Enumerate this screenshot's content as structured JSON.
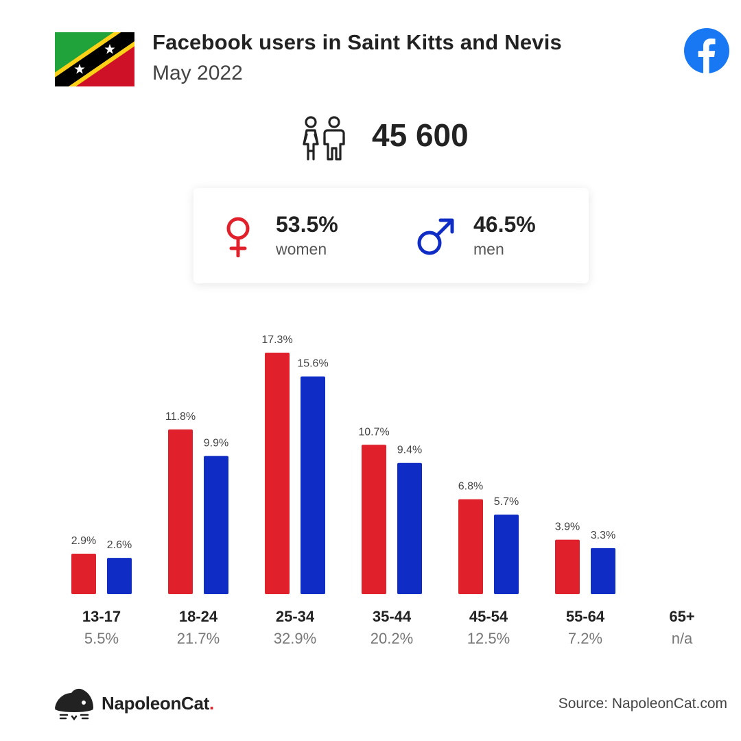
{
  "header": {
    "title": "Facebook users in Saint Kitts and Nevis",
    "subtitle": "May 2022",
    "flag_icon": "saint-kitts-and-nevis-flag",
    "logo_icon": "facebook-logo"
  },
  "summary": {
    "total": "45 600",
    "icon": "people-icon"
  },
  "gender": {
    "women_pct": "53.5%",
    "women_label": "women",
    "men_pct": "46.5%",
    "men_label": "men",
    "women_color": "#e0202a",
    "men_color": "#0f2cc4"
  },
  "chart_data": {
    "type": "bar",
    "categories": [
      "13-17",
      "18-24",
      "25-34",
      "35-44",
      "45-54",
      "55-64",
      "65+"
    ],
    "category_totals": [
      "5.5%",
      "21.7%",
      "32.9%",
      "20.2%",
      "12.5%",
      "7.2%",
      "n/a"
    ],
    "series": [
      {
        "values": [
          2.9,
          11.8,
          17.3,
          10.7,
          6.8,
          3.9,
          null
        ],
        "labels": [
          "2.9%",
          "11.8%",
          "17.3%",
          "10.7%",
          "6.8%",
          "3.9%",
          ""
        ],
        "color": "#e0202a"
      },
      {
        "values": [
          2.6,
          9.9,
          15.6,
          9.4,
          5.7,
          3.3,
          null
        ],
        "labels": [
          "2.6%",
          "9.9%",
          "15.6%",
          "9.4%",
          "5.7%",
          "3.3%",
          ""
        ],
        "color": "#0f2cc4"
      }
    ],
    "ylim": [
      0,
      17.3
    ],
    "grid": false
  },
  "footer": {
    "brand": "NapoleonCat",
    "brand_dot": ".",
    "source": "Source: NapoleonCat.com",
    "brand_icon": "napoleoncat-logo"
  }
}
